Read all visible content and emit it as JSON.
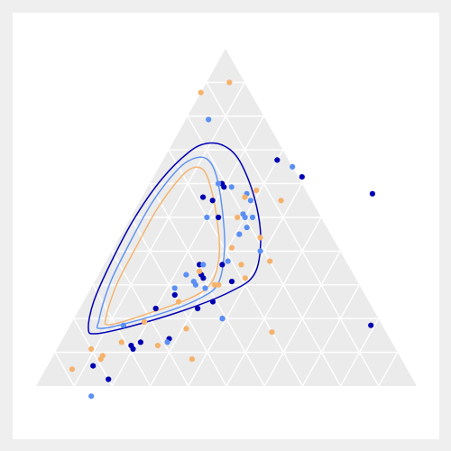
{
  "chart_data": {
    "type": "scatter",
    "subtype": "ternary",
    "grid": true,
    "axis_range": [
      0,
      1
    ],
    "grid_step": 0.1,
    "title": "",
    "legend": "none",
    "series": [
      {
        "color": "#0000b3",
        "points": [
          [
            0.06,
            0.12,
            0.82
          ],
          [
            0.02,
            0.18,
            0.8
          ],
          [
            0.11,
            0.2,
            0.69
          ],
          [
            0.12,
            0.19,
            0.69
          ],
          [
            0.13,
            0.21,
            0.66
          ],
          [
            0.27,
            0.23,
            0.5
          ],
          [
            0.23,
            0.31,
            0.46
          ],
          [
            0.25,
            0.34,
            0.41
          ],
          [
            0.32,
            0.28,
            0.4
          ],
          [
            0.33,
            0.27,
            0.4
          ],
          [
            0.36,
            0.25,
            0.39
          ],
          [
            0.36,
            0.31,
            0.33
          ],
          [
            0.5,
            0.23,
            0.27
          ],
          [
            0.56,
            0.16,
            0.28
          ],
          [
            0.55,
            0.19,
            0.26
          ],
          [
            0.59,
            0.2,
            0.21
          ],
          [
            0.6,
            0.19,
            0.21
          ],
          [
            0.67,
            0.3,
            0.03
          ],
          [
            0.62,
            0.39,
            -0.01
          ],
          [
            0.57,
            0.6,
            -0.17
          ],
          [
            0.18,
            0.79,
            0.03
          ],
          [
            0.14,
            0.28,
            0.58
          ],
          [
            0.31,
            0.36,
            0.33
          ],
          [
            0.23,
            0.2,
            0.57
          ],
          [
            0.2,
            0.39,
            0.41
          ]
        ]
      },
      {
        "color": "#5b8ff5",
        "points": [
          [
            -0.03,
            0.16,
            0.87
          ],
          [
            0.18,
            0.14,
            0.68
          ],
          [
            0.29,
            0.22,
            0.49
          ],
          [
            0.5,
            0.2,
            0.3
          ],
          [
            0.57,
            0.27,
            0.16
          ],
          [
            0.79,
            0.06,
            0.15
          ],
          [
            0.65,
            0.35,
            0.0
          ],
          [
            0.2,
            0.39,
            0.41
          ],
          [
            0.13,
            0.28,
            0.59
          ],
          [
            0.31,
            0.26,
            0.43
          ],
          [
            0.36,
            0.26,
            0.38
          ],
          [
            0.37,
            0.32,
            0.31
          ],
          [
            0.4,
            0.39,
            0.21
          ],
          [
            0.47,
            0.32,
            0.21
          ],
          [
            0.45,
            0.31,
            0.24
          ],
          [
            0.55,
            0.29,
            0.16
          ],
          [
            0.59,
            0.22,
            0.19
          ],
          [
            0.6,
            0.18,
            0.22
          ],
          [
            0.29,
            0.3,
            0.41
          ],
          [
            0.33,
            0.23,
            0.44
          ],
          [
            0.3,
            0.27,
            0.43
          ],
          [
            0.45,
            0.31,
            0.24
          ],
          [
            0.51,
            0.29,
            0.2
          ],
          [
            0.5,
            0.3,
            0.2
          ],
          [
            0.5,
            0.32,
            0.18
          ]
        ]
      },
      {
        "color": "#f5b26b",
        "points": [
          [
            0.05,
            0.07,
            0.88
          ],
          [
            0.09,
            0.13,
            0.78
          ],
          [
            0.13,
            0.16,
            0.71
          ],
          [
            0.12,
            0.26,
            0.62
          ],
          [
            0.17,
            0.31,
            0.52
          ],
          [
            0.34,
            0.26,
            0.4
          ],
          [
            0.3,
            0.32,
            0.38
          ],
          [
            0.37,
            0.43,
            0.2
          ],
          [
            0.44,
            0.37,
            0.19
          ],
          [
            0.5,
            0.28,
            0.22
          ],
          [
            0.56,
            0.27,
            0.17
          ],
          [
            0.58,
            0.29,
            0.13
          ],
          [
            0.55,
            0.37,
            0.08
          ],
          [
            0.36,
            0.36,
            0.28
          ],
          [
            0.32,
            0.39,
            0.29
          ],
          [
            0.41,
            0.31,
            0.28
          ],
          [
            0.08,
            0.37,
            0.55
          ],
          [
            0.16,
            0.54,
            0.3
          ],
          [
            0.9,
            0.06,
            0.04
          ],
          [
            0.87,
            0.0,
            0.13
          ],
          [
            0.08,
            0.13,
            0.79
          ],
          [
            0.11,
            0.09,
            0.8
          ],
          [
            0.19,
            0.19,
            0.62
          ],
          [
            0.25,
            0.25,
            0.5
          ],
          [
            0.3,
            0.33,
            0.37
          ]
        ]
      }
    ],
    "contours": [
      {
        "color": "#0000b3",
        "level": "outer"
      },
      {
        "color": "#5b8ff5",
        "level": "outer"
      },
      {
        "color": "#f5b26b",
        "level": "outer"
      }
    ]
  }
}
